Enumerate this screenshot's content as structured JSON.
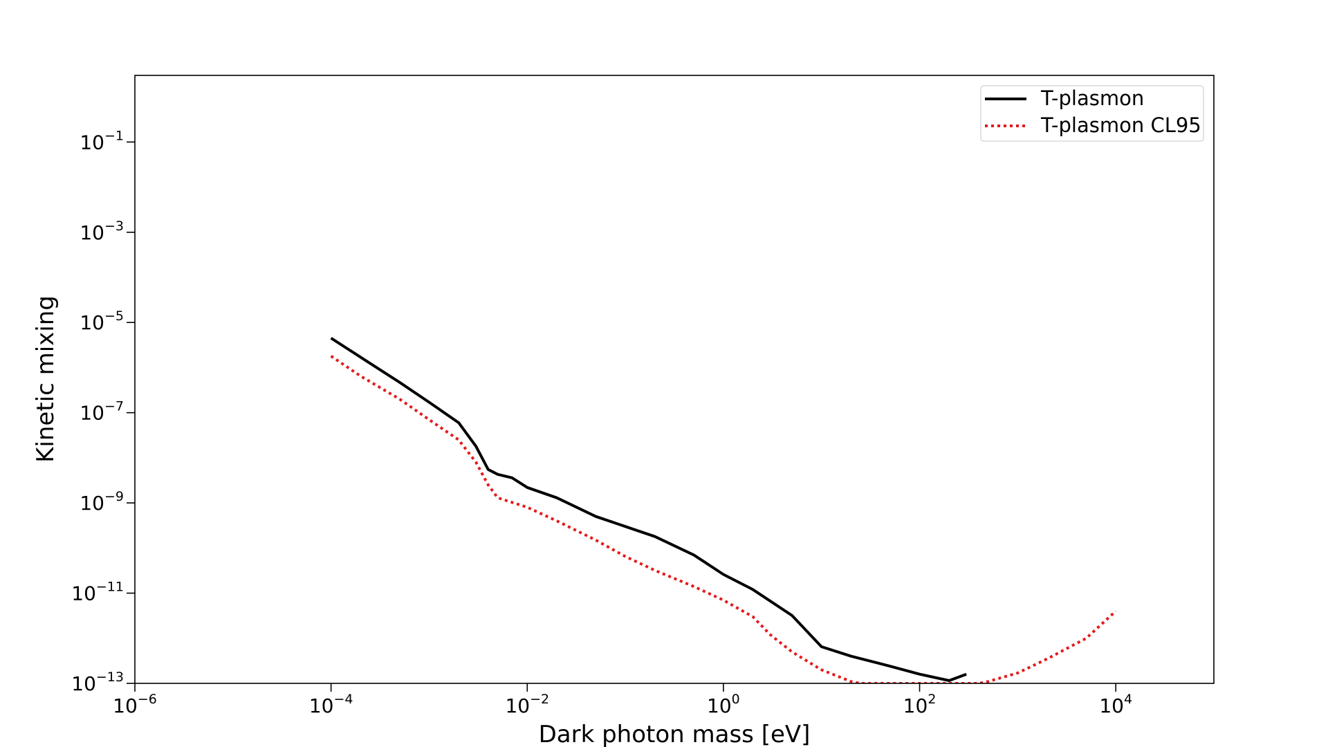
{
  "chart_data": {
    "type": "line",
    "xlabel": "Dark photon mass [eV]",
    "ylabel": "Kinetic mixing",
    "xscale": "log",
    "yscale": "log",
    "xlim": [
      1e-06,
      100000.0
    ],
    "ylim": [
      1e-13,
      3
    ],
    "x_ticks": [
      {
        "base": "10",
        "exp": "−6",
        "value": 1e-06
      },
      {
        "base": "10",
        "exp": "−4",
        "value": 0.0001
      },
      {
        "base": "10",
        "exp": "−2",
        "value": 0.01
      },
      {
        "base": "10",
        "exp": "0",
        "value": 1
      },
      {
        "base": "10",
        "exp": "2",
        "value": 100
      },
      {
        "base": "10",
        "exp": "4",
        "value": 10000
      }
    ],
    "y_ticks": [
      {
        "base": "10",
        "exp": "−1",
        "value": 0.1
      },
      {
        "base": "10",
        "exp": "−3",
        "value": 0.001
      },
      {
        "base": "10",
        "exp": "−5",
        "value": 1e-05
      },
      {
        "base": "10",
        "exp": "−7",
        "value": 1e-07
      },
      {
        "base": "10",
        "exp": "−9",
        "value": 1e-09
      },
      {
        "base": "10",
        "exp": "−11",
        "value": 1e-11
      },
      {
        "base": "10",
        "exp": "−13",
        "value": 1e-13
      }
    ],
    "grid": false,
    "legend_position": "upper-right",
    "series": [
      {
        "name": "T-plasmon",
        "color": "#000000",
        "style": "solid",
        "x": [
          0.0001,
          0.0002,
          0.0005,
          0.001,
          0.002,
          0.003,
          0.004,
          0.005,
          0.007,
          0.01,
          0.02,
          0.05,
          0.1,
          0.2,
          0.5,
          1,
          2,
          5,
          10,
          20,
          50,
          100,
          200,
          300
        ],
        "y": [
          4.5e-06,
          1.7e-06,
          4.7e-07,
          1.7e-07,
          6e-08,
          1.8e-08,
          5.5e-09,
          4.3e-09,
          3.6e-09,
          2.2e-09,
          1.3e-09,
          5e-10,
          3e-10,
          1.8e-10,
          7e-11,
          2.6e-11,
          1.2e-11,
          3.2e-12,
          6.5e-13,
          4e-13,
          2.4e-13,
          1.6e-13,
          1.15e-13,
          1.6e-13
        ]
      },
      {
        "name": "T-plasmon CL95",
        "color": "#e31a1c",
        "style": "dotted",
        "x": [
          0.0001,
          0.0002,
          0.0005,
          0.001,
          0.002,
          0.003,
          0.004,
          0.005,
          0.01,
          0.02,
          0.05,
          0.1,
          0.2,
          0.5,
          1,
          2,
          3,
          5,
          10,
          20,
          25,
          400,
          500,
          1000,
          2000,
          5000,
          10000
        ],
        "y": [
          1.8e-06,
          6.5e-07,
          2e-07,
          7e-08,
          2.5e-08,
          8e-09,
          2.5e-09,
          1.3e-09,
          8e-10,
          4e-10,
          1.5e-10,
          6.5e-11,
          3.2e-11,
          1.4e-11,
          7e-12,
          3e-12,
          1.2e-12,
          5e-13,
          2e-13,
          1.1e-13,
          1e-13,
          1e-13,
          1.1e-13,
          1.7e-13,
          3.5e-13,
          1e-12,
          4e-12
        ]
      }
    ]
  }
}
